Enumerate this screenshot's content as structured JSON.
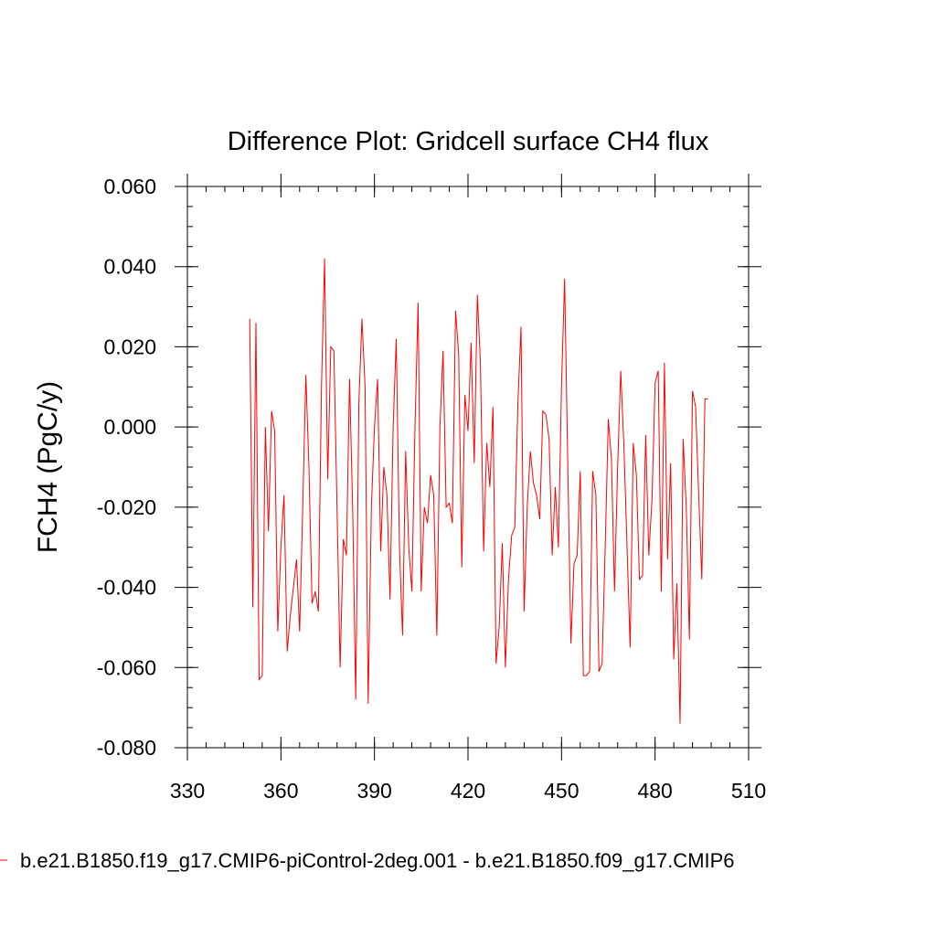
{
  "chart_data": {
    "type": "line",
    "title": "Difference Plot: Gridcell surface CH4 flux",
    "xlabel": "",
    "ylabel": "FCH4  (PgC/y)",
    "xlim": [
      330,
      510
    ],
    "ylim": [
      -0.08,
      0.06
    ],
    "xticks": [
      330,
      360,
      390,
      420,
      450,
      480,
      510
    ],
    "xtick_labels": [
      "330",
      "360",
      "390",
      "420",
      "450",
      "480",
      "510"
    ],
    "yticks": [
      -0.08,
      -0.06,
      -0.04,
      -0.02,
      0.0,
      0.02,
      0.04,
      0.06
    ],
    "ytick_labels": [
      "-0.080",
      "-0.060",
      "-0.040",
      "-0.020",
      "0.000",
      "0.020",
      "0.040",
      "0.060"
    ],
    "grid": false,
    "legend_position": "bottom",
    "series": [
      {
        "name": "b.e21.B1850.f19_g17.CMIP6-piControl-2deg.001 - b.e21.B1850.f09_g17.CMIP6",
        "color": "#ff0000",
        "x_start": 350,
        "x_step": 1,
        "values": [
          0.027,
          -0.045,
          0.026,
          -0.063,
          -0.062,
          0.0,
          -0.026,
          0.004,
          -0.001,
          -0.051,
          -0.03,
          -0.017,
          -0.056,
          -0.047,
          -0.04,
          -0.033,
          -0.051,
          -0.02,
          0.013,
          -0.01,
          -0.044,
          -0.041,
          -0.046,
          0.01,
          0.042,
          -0.013,
          0.02,
          0.019,
          -0.02,
          -0.06,
          -0.028,
          -0.032,
          0.012,
          -0.02,
          -0.068,
          0.006,
          0.027,
          0.01,
          -0.069,
          -0.02,
          0.0,
          0.012,
          -0.031,
          -0.01,
          -0.017,
          -0.043,
          0.0,
          0.022,
          -0.03,
          -0.052,
          -0.006,
          -0.03,
          -0.041,
          0.0,
          0.031,
          -0.041,
          -0.02,
          -0.024,
          -0.012,
          -0.017,
          -0.052,
          0.0,
          0.019,
          -0.02,
          -0.019,
          -0.024,
          0.029,
          0.018,
          -0.035,
          0.008,
          -0.001,
          0.021,
          -0.009,
          0.033,
          0.016,
          -0.031,
          -0.004,
          -0.015,
          0.005,
          -0.059,
          -0.05,
          -0.029,
          -0.06,
          -0.038,
          -0.027,
          -0.025,
          0.006,
          0.025,
          -0.046,
          -0.02,
          -0.006,
          -0.014,
          -0.017,
          -0.023,
          0.004,
          0.003,
          -0.003,
          -0.032,
          -0.015,
          -0.03,
          0.01,
          0.037,
          -0.01,
          -0.054,
          -0.034,
          -0.032,
          -0.011,
          -0.062,
          -0.062,
          -0.061,
          -0.011,
          -0.017,
          -0.061,
          -0.059,
          -0.03,
          0.002,
          -0.008,
          -0.041,
          -0.01,
          0.014,
          -0.005,
          -0.03,
          -0.055,
          -0.004,
          -0.012,
          -0.038,
          -0.037,
          -0.002,
          -0.032,
          -0.018,
          0.011,
          0.014,
          -0.041,
          0.016,
          -0.033,
          -0.009,
          -0.058,
          -0.039,
          -0.074,
          -0.003,
          -0.02,
          -0.053,
          0.009,
          0.005,
          -0.017,
          -0.038,
          0.007,
          0.007
        ]
      }
    ]
  }
}
